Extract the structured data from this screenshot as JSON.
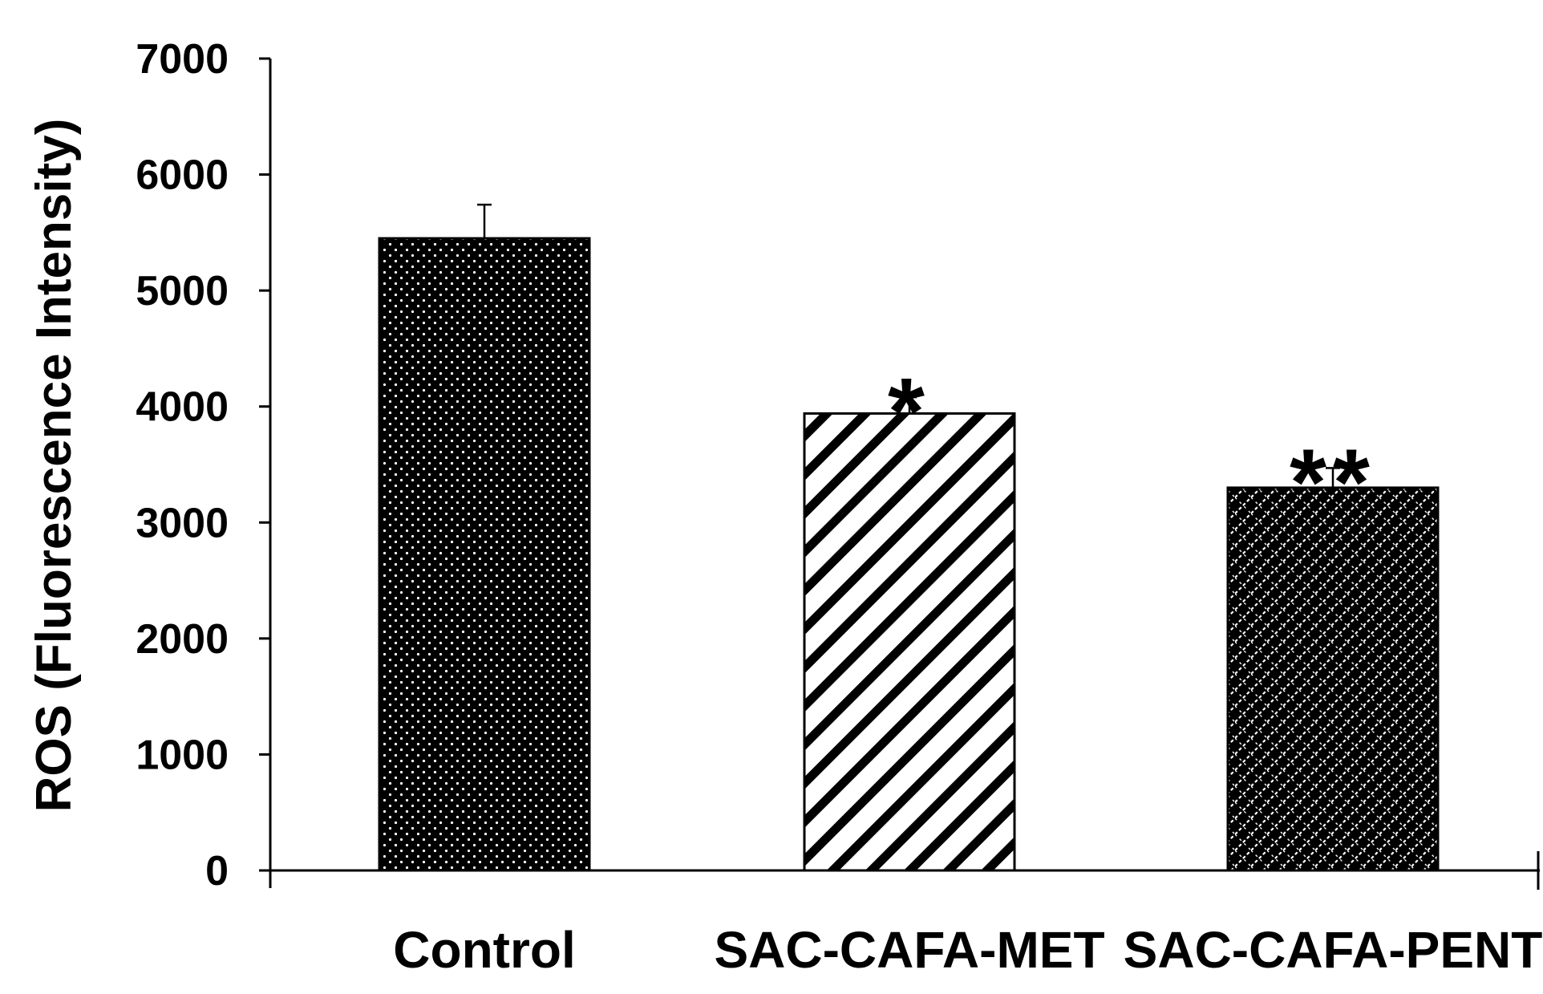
{
  "chart_data": {
    "type": "bar",
    "title": "",
    "xlabel": "",
    "ylabel": "ROS (Fluorescence Intensity)",
    "ylim": [
      0,
      7000
    ],
    "yticks": [
      0,
      1000,
      2000,
      3000,
      4000,
      5000,
      6000,
      7000
    ],
    "categories": [
      "Control",
      "SAC-CAFA-MET",
      "SAC-CAFA-PENT"
    ],
    "values": [
      5450,
      3940,
      3300
    ],
    "errors": [
      290,
      140,
      170
    ],
    "significance": [
      "",
      "*",
      "**"
    ],
    "patterns": [
      "dotted",
      "diagonal-stripes",
      "diagonal-crosshatch"
    ],
    "grid": false,
    "legend": "none"
  },
  "colors": {
    "bar_fill": "#000000",
    "pattern": "#ffffff",
    "axis": "#000000"
  }
}
